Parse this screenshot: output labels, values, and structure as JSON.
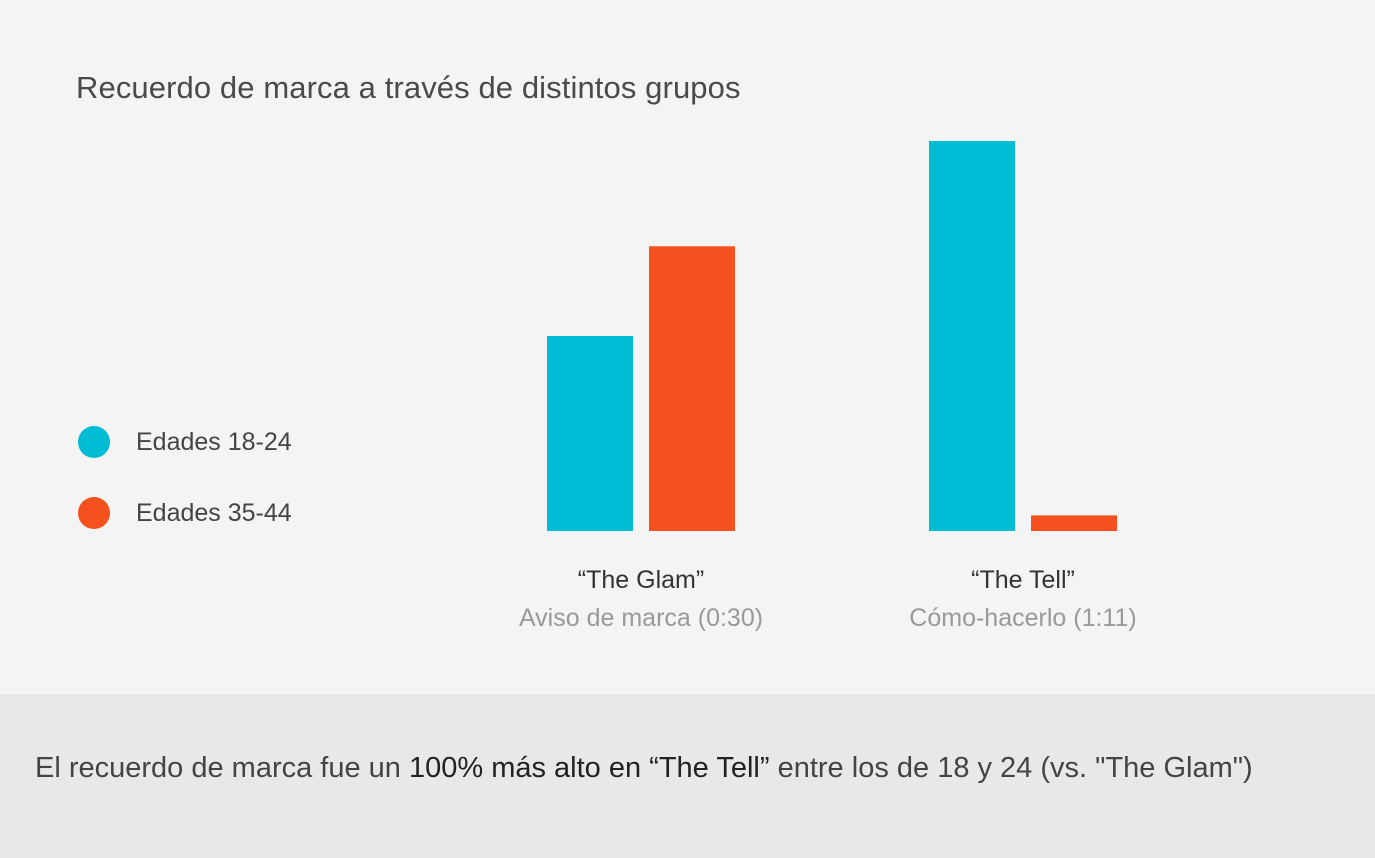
{
  "title": "Recuerdo de marca a través de distintos grupos",
  "legend": [
    {
      "label": "Edades 18-24",
      "color": "#00bcd4"
    },
    {
      "label": "Edades 35-44",
      "color": "#f4511e"
    }
  ],
  "categories": [
    {
      "name": "“The Glam”",
      "subtitle": "Aviso de marca (0:30)"
    },
    {
      "name": "“The Tell”",
      "subtitle": "Cómo-hacerlo (1:11)"
    }
  ],
  "footer": {
    "prefix": "El recuerdo de marca fue un ",
    "highlight": "100% más alto en “The Tell”",
    "suffix": " entre los de 18 y 24 (vs. \"The Glam\")"
  },
  "chart_data": {
    "type": "bar",
    "title": "Recuerdo de marca a través de distintos grupos",
    "categories": [
      "“The Glam”",
      "“The Tell”"
    ],
    "series": [
      {
        "name": "Edades 18-24",
        "color": "#00bcd4",
        "values": [
          50,
          100
        ]
      },
      {
        "name": "Edades 35-44",
        "color": "#f4511e",
        "values": [
          73,
          4
        ]
      }
    ],
    "ylim": [
      0,
      100
    ],
    "axes_visible": false,
    "grid": false,
    "legend_position": "left"
  }
}
